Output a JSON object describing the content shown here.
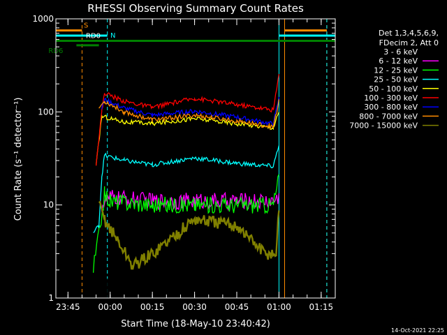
{
  "chart_data": {
    "type": "line",
    "title": "RHESSI Observing Summary Count Rates",
    "xlabel": "Start Time (18-May-10 23:40:42)",
    "ylabel": "Count Rate (s⁻¹ detector⁻¹)",
    "yscale": "log",
    "ylim": [
      1,
      1000
    ],
    "xlim": [
      "23:40:42",
      "01:20:00"
    ],
    "x_ticks": [
      "23:45",
      "00:00",
      "00:15",
      "00:30",
      "00:45",
      "01:00",
      "01:15"
    ],
    "y_ticks": [
      "1",
      "10",
      "100",
      "1000"
    ],
    "legend_title": [
      "Det 1,3,4,5,6,9,",
      "FDecim 2, Att 0"
    ],
    "legend_position": "right",
    "footer_date": "14-Oct-2021 22:25",
    "series": [
      {
        "name": "3 - 6 keV",
        "color": "#000000",
        "points": [
          [
            "23:59",
            2
          ],
          [
            "00:15",
            1
          ],
          [
            "00:30",
            1
          ],
          [
            "00:45",
            1
          ],
          [
            "00:57",
            1
          ]
        ]
      },
      {
        "name": "6 - 12 keV",
        "color": "#ff00ff",
        "points": [
          [
            "23:57",
            10
          ],
          [
            "00:00",
            12
          ],
          [
            "00:15",
            11
          ],
          [
            "00:30",
            11
          ],
          [
            "00:45",
            11
          ],
          [
            "00:58",
            11
          ],
          [
            "01:00",
            12
          ]
        ]
      },
      {
        "name": "12 - 25 keV",
        "color": "#00ff00",
        "points": [
          [
            "23:54",
            2
          ],
          [
            "23:56",
            5
          ],
          [
            "23:58",
            13
          ],
          [
            "00:00",
            11
          ],
          [
            "00:15",
            10
          ],
          [
            "00:30",
            10
          ],
          [
            "00:45",
            10
          ],
          [
            "00:58",
            10
          ],
          [
            "01:00",
            20
          ]
        ]
      },
      {
        "name": "25 - 50 keV",
        "color": "#00ffff",
        "points": [
          [
            "23:54",
            5
          ],
          [
            "23:56",
            6
          ],
          [
            "23:57",
            20
          ],
          [
            "23:58",
            34
          ],
          [
            "00:05",
            30
          ],
          [
            "00:15",
            27
          ],
          [
            "00:30",
            32
          ],
          [
            "00:45",
            28
          ],
          [
            "00:58",
            26
          ],
          [
            "01:00",
            45
          ]
        ]
      },
      {
        "name": "50 - 100 keV",
        "color": "#ffff00",
        "points": [
          [
            "23:55",
            26
          ],
          [
            "23:57",
            90
          ],
          [
            "00:05",
            78
          ],
          [
            "00:15",
            75
          ],
          [
            "00:30",
            85
          ],
          [
            "00:45",
            75
          ],
          [
            "00:58",
            68
          ],
          [
            "01:00",
            100
          ]
        ]
      },
      {
        "name": "100 - 300 keV",
        "color": "#ff0000",
        "points": [
          [
            "23:55",
            28
          ],
          [
            "23:57",
            100
          ],
          [
            "23:58",
            160
          ],
          [
            "00:05",
            130
          ],
          [
            "00:15",
            112
          ],
          [
            "00:30",
            140
          ],
          [
            "00:45",
            120
          ],
          [
            "00:58",
            105
          ],
          [
            "01:00",
            250
          ]
        ]
      },
      {
        "name": "300 - 800 keV",
        "color": "#0000ff",
        "points": [
          [
            "23:57",
            110
          ],
          [
            "23:58",
            135
          ],
          [
            "00:05",
            110
          ],
          [
            "00:15",
            92
          ],
          [
            "00:30",
            102
          ],
          [
            "00:45",
            88
          ],
          [
            "00:58",
            74
          ],
          [
            "01:00",
            140
          ]
        ]
      },
      {
        "name": "800 - 7000 keV",
        "color": "#ff8c00",
        "points": [
          [
            "23:56",
            110
          ],
          [
            "23:58",
            130
          ],
          [
            "00:05",
            100
          ],
          [
            "00:15",
            82
          ],
          [
            "00:30",
            92
          ],
          [
            "00:45",
            80
          ],
          [
            "00:58",
            69
          ],
          [
            "01:00",
            130
          ]
        ]
      },
      {
        "name": "7000 - 15000 keV",
        "color": "#808000",
        "points": [
          [
            "23:56",
            10
          ],
          [
            "23:58",
            7
          ],
          [
            "00:03",
            4
          ],
          [
            "00:08",
            2.2
          ],
          [
            "00:15",
            3
          ],
          [
            "00:30",
            7
          ],
          [
            "00:45",
            6
          ],
          [
            "00:55",
            3
          ],
          [
            "00:59",
            3
          ],
          [
            "01:00",
            9
          ]
        ]
      }
    ],
    "markers": [
      {
        "label": "S",
        "color": "#ff8c00",
        "y": 750,
        "segments": [
          [
            "23:40:42",
            "23:50"
          ],
          [
            "01:02",
            "01:17"
          ]
        ]
      },
      {
        "label": "N",
        "color": "#00ffff",
        "y": 660,
        "segments": [
          [
            "23:40:42",
            "23:59"
          ],
          [
            "01:00",
            "01:20"
          ]
        ]
      },
      {
        "label": "RD0",
        "color": "#008000",
        "y": 580,
        "segments": [
          [
            "23:40:42",
            "01:20"
          ]
        ]
      },
      {
        "label": "RD6",
        "color": "#008000",
        "y": 520,
        "segments": [
          [
            "23:48",
            "23:56"
          ]
        ]
      }
    ],
    "vertical_lines": [
      {
        "x": "23:40:42",
        "color": "#00ffff",
        "style": "solid"
      },
      {
        "x": "23:50",
        "color": "#ff8c00",
        "style": "dashed"
      },
      {
        "x": "23:59",
        "color": "#00ffff",
        "style": "dashed"
      },
      {
        "x": "01:00",
        "color": "#00ffff",
        "style": "solid"
      },
      {
        "x": "01:02",
        "color": "#ff8c00",
        "style": "solid"
      },
      {
        "x": "01:17",
        "color": "#ff8c00",
        "style": "dashed"
      },
      {
        "x": "01:17",
        "color": "#00ffff",
        "style": "dashed"
      }
    ]
  }
}
